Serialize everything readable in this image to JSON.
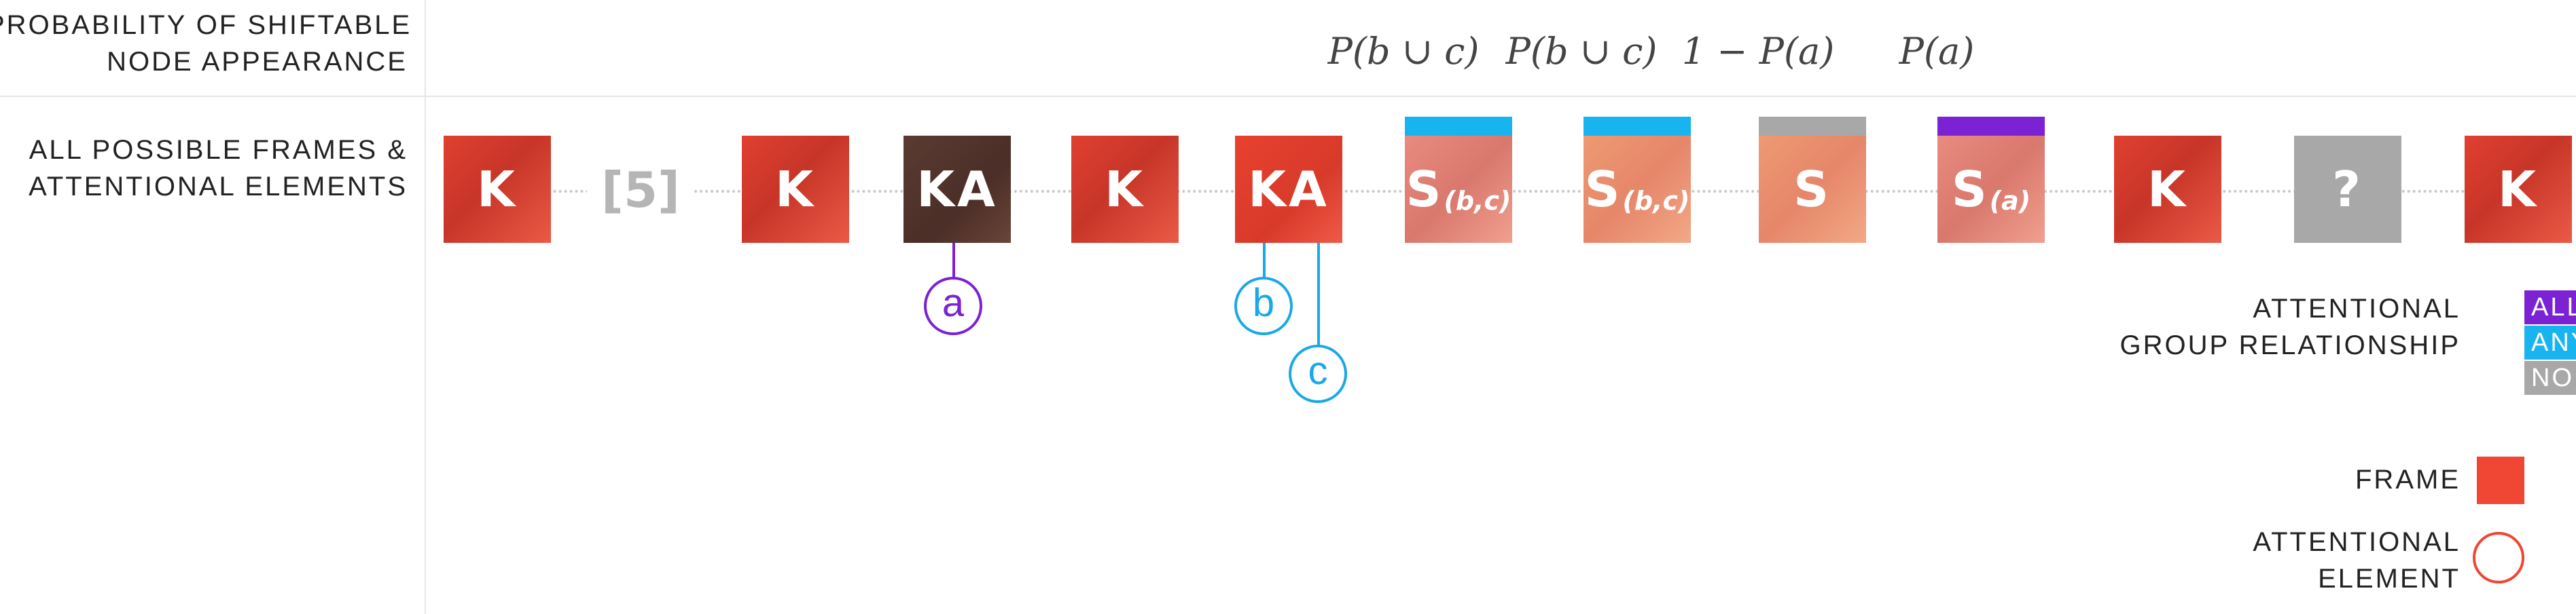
{
  "row_labels": {
    "probability": [
      "PROBABILITY OF SHIFTABLE",
      "NODE APPEARANCE"
    ],
    "frames": [
      "ALL POSSIBLE FRAMES &",
      "ATTENTIONAL ELEMENTS"
    ]
  },
  "probabilities": [
    {
      "frame_index": 6,
      "text": "P(b ∪ c)"
    },
    {
      "frame_index": 7,
      "text": "P(b ∪ c)"
    },
    {
      "frame_index": 8,
      "text": "1 − P(a)"
    },
    {
      "frame_index": 9,
      "text": "P(a)"
    }
  ],
  "frames": [
    {
      "label": "K",
      "sub": "",
      "kind": "k"
    },
    {
      "label": "[5]",
      "sub": "",
      "kind": "placeholder"
    },
    {
      "label": "K",
      "sub": "",
      "kind": "k"
    },
    {
      "label": "KA",
      "sub": "",
      "kind": "ka-dark"
    },
    {
      "label": "K",
      "sub": "",
      "kind": "k"
    },
    {
      "label": "KA",
      "sub": "",
      "kind": "ka"
    },
    {
      "label": "S",
      "sub": "(b,c)",
      "kind": "s",
      "group": "ANY"
    },
    {
      "label": "S",
      "sub": "(b,c)",
      "kind": "s2",
      "group": "ANY"
    },
    {
      "label": "S",
      "sub": "",
      "kind": "s2",
      "group": "NONE"
    },
    {
      "label": "S",
      "sub": "(a)",
      "kind": "s",
      "group": "ALL"
    },
    {
      "label": "K",
      "sub": "",
      "kind": "k"
    },
    {
      "label": "?",
      "sub": "",
      "kind": "q"
    },
    {
      "label": "K",
      "sub": "",
      "kind": "k"
    }
  ],
  "attentional_elements": [
    {
      "label": "a",
      "frame_index": 3,
      "color": "#7b22d4"
    },
    {
      "label": "b",
      "frame_index": 5,
      "color": "#18a9e6"
    },
    {
      "label": "c",
      "frame_index": 5,
      "color": "#18a9e6"
    }
  ],
  "legend": {
    "group_title": [
      "ATTENTIONAL",
      "GROUP RELATIONSHIP"
    ],
    "groups": [
      {
        "label": "ALL",
        "color": "#7b22d4"
      },
      {
        "label": "ANY",
        "color": "#18b4f0"
      },
      {
        "label": "NONE",
        "color": "#a8a8a8"
      }
    ],
    "frame_label": "FRAME",
    "frame_color": "#f04634",
    "element_label": [
      "ATTENTIONAL",
      "ELEMENT"
    ],
    "element_color": "#f04634"
  }
}
